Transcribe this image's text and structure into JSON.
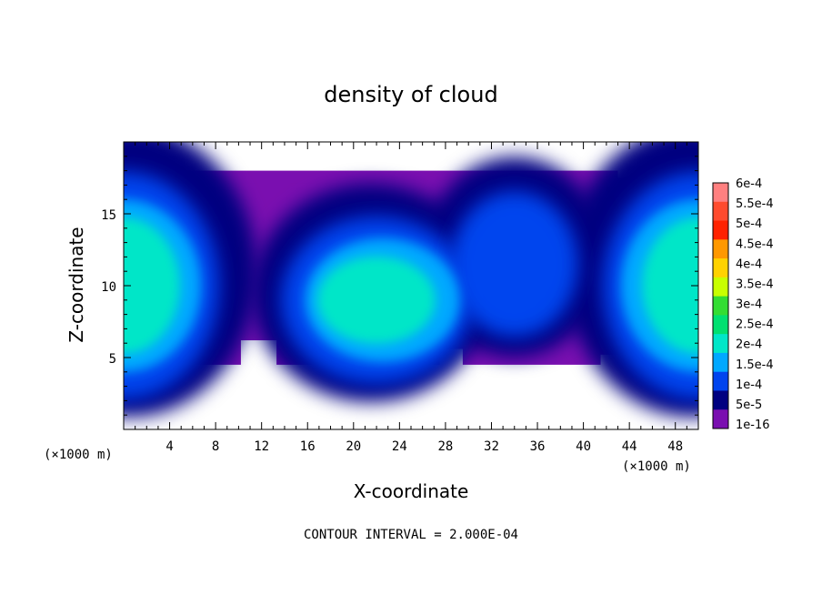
{
  "chart_data": {
    "type": "heatmap",
    "title": "density of cloud",
    "xlabel": "X-coordinate",
    "ylabel": "Z-coordinate",
    "x_unit": "(×1000 m)",
    "xlim": [
      0,
      50
    ],
    "ylim": [
      0,
      20
    ],
    "x_ticks": [
      4,
      8,
      12,
      16,
      20,
      24,
      28,
      32,
      36,
      40,
      44,
      48
    ],
    "y_ticks": [
      5,
      10,
      15
    ],
    "colorbar": {
      "labels": [
        "6e-4",
        "5.5e-4",
        "5e-4",
        "4.5e-4",
        "4e-4",
        "3.5e-4",
        "3e-4",
        "2.5e-4",
        "2e-4",
        "1.5e-4",
        "1e-4",
        "5e-5",
        "1e-16"
      ],
      "colors": [
        "#ff8080",
        "#ff4b2e",
        "#ff2200",
        "#ff9800",
        "#ffd200",
        "#c8ff00",
        "#33dd33",
        "#00e070",
        "#00e6c8",
        "#00a8ff",
        "#0044ee",
        "#000080",
        "#7a0fb0"
      ]
    },
    "contour_interval": "CONTOUR INTERVAL = 2.000E-04",
    "cloud_layer": {
      "z_bottom_approx": 4.5,
      "z_top_approx": 17.5
    },
    "field_features": [
      {
        "x_center": 0,
        "z_center": 10.5,
        "peak_level": "2e-4",
        "note": "column at left edge"
      },
      {
        "x_center": 23,
        "z_center": 9.5,
        "peak_level": "2e-4",
        "note": "broad column"
      },
      {
        "x_center": 50,
        "z_center": 10.5,
        "peak_level": "2e-4",
        "note": "column at right edge"
      },
      {
        "x_center": 34,
        "z_center": 11,
        "peak_level": "1e-4"
      }
    ]
  }
}
